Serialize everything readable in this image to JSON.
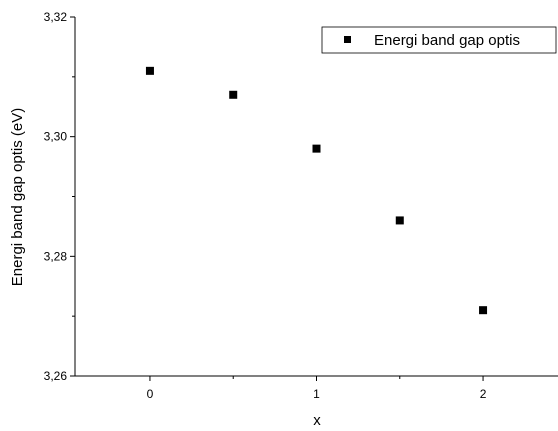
{
  "chart_data": {
    "type": "scatter",
    "xlabel": "x",
    "ylabel": "Energi band gap optis (eV)",
    "xlim": [
      -0.45,
      2.45
    ],
    "ylim": [
      3.26,
      3.32
    ],
    "xticks": [
      0,
      1,
      2
    ],
    "xtick_labels": [
      "0",
      "1",
      "2"
    ],
    "yticks": [
      3.26,
      3.28,
      3.3,
      3.32
    ],
    "ytick_labels": [
      "3,26",
      "3,28",
      "3,30",
      "3,32"
    ],
    "grid": false,
    "legend_position": "top-right",
    "marker": "square",
    "marker_color": "#000000",
    "series": [
      {
        "name": "Energi band gap optis",
        "x": [
          0,
          0.5,
          1,
          1.5,
          2
        ],
        "y": [
          3.311,
          3.307,
          3.298,
          3.286,
          3.271
        ]
      }
    ]
  }
}
